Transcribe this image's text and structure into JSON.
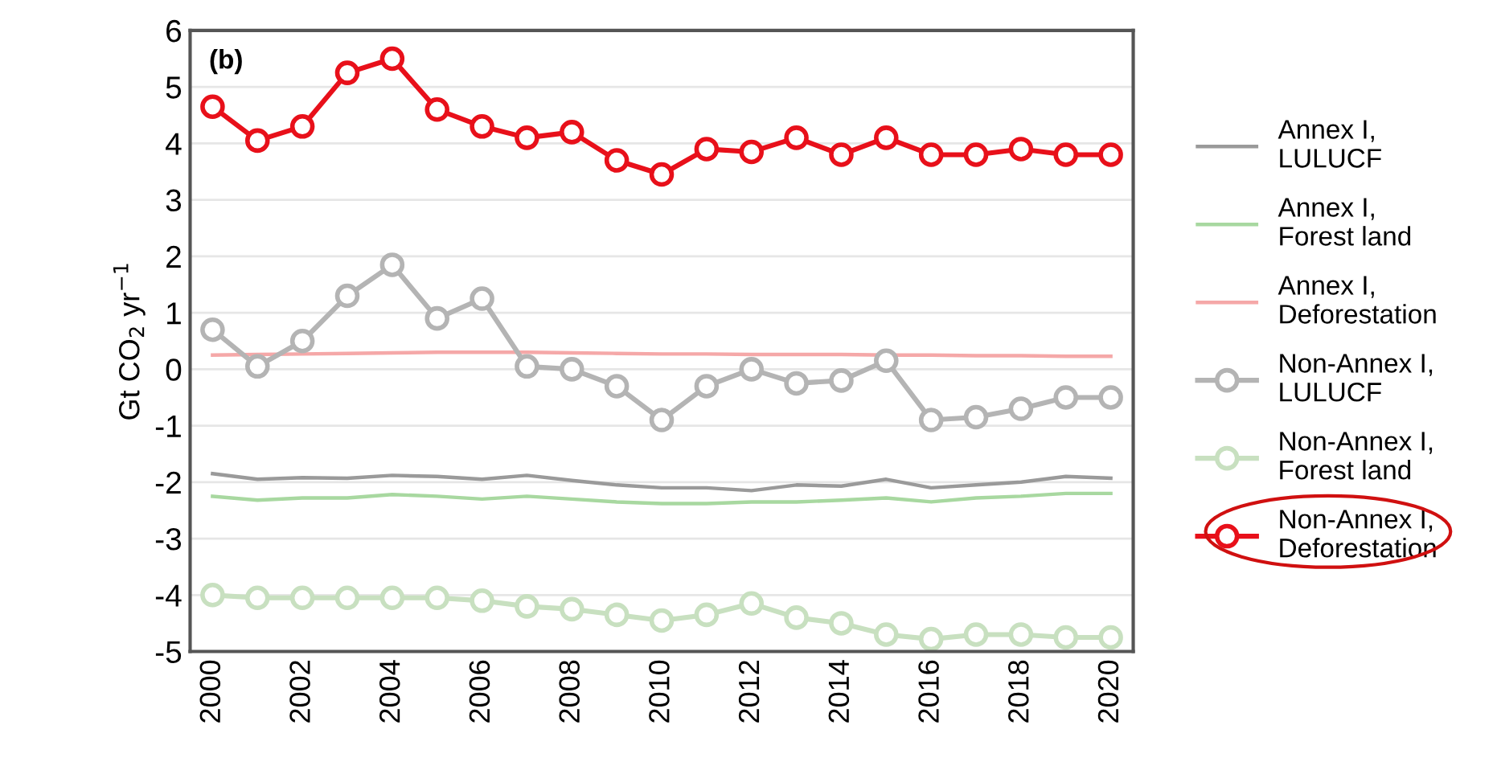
{
  "chart_data": {
    "type": "line",
    "ylabel": "Gt CO$_{2}$ yr$^{−1}$",
    "annotations": [
      "(b)"
    ],
    "x": [
      2000,
      2001,
      2002,
      2003,
      2004,
      2005,
      2006,
      2007,
      2008,
      2009,
      2010,
      2011,
      2012,
      2013,
      2014,
      2015,
      2016,
      2017,
      2018,
      2019,
      2020
    ],
    "xlim": [
      1999.5,
      2020.5
    ],
    "xticks": [
      2000,
      2002,
      2004,
      2006,
      2008,
      2010,
      2012,
      2014,
      2016,
      2018,
      2020
    ],
    "ylim": [
      -5,
      6
    ],
    "yticks": [
      -5,
      -4,
      -3,
      -2,
      -1,
      0,
      1,
      2,
      3,
      4,
      5,
      6
    ],
    "grid": "y",
    "legend": "right",
    "line_style": "solid",
    "series": [
      {
        "name": "Annex I,\nLULUCF",
        "color": "#9a9a9a",
        "marker": "none",
        "values": [
          -1.85,
          -1.95,
          -1.92,
          -1.93,
          -1.88,
          -1.9,
          -1.95,
          -1.88,
          -1.97,
          -2.05,
          -2.1,
          -2.1,
          -2.15,
          -2.05,
          -2.07,
          -1.95,
          -2.1,
          -2.05,
          -2.0,
          -1.9,
          -1.93
        ]
      },
      {
        "name": "Annex I,\nForest land",
        "color": "#a8d8a0",
        "marker": "none",
        "values": [
          -2.25,
          -2.32,
          -2.28,
          -2.28,
          -2.22,
          -2.25,
          -2.3,
          -2.25,
          -2.3,
          -2.35,
          -2.38,
          -2.38,
          -2.35,
          -2.35,
          -2.32,
          -2.28,
          -2.35,
          -2.28,
          -2.25,
          -2.2,
          -2.2
        ]
      },
      {
        "name": "Annex I,\nDeforestation",
        "color": "#f5a8a8",
        "marker": "none",
        "values": [
          0.25,
          0.26,
          0.27,
          0.28,
          0.29,
          0.3,
          0.3,
          0.3,
          0.29,
          0.28,
          0.27,
          0.27,
          0.26,
          0.26,
          0.26,
          0.25,
          0.25,
          0.24,
          0.24,
          0.23,
          0.23
        ]
      },
      {
        "name": "Non-Annex I,\nLULUCF",
        "color": "#b4b4b4",
        "marker": "circle",
        "values": [
          0.7,
          0.05,
          0.5,
          1.3,
          1.85,
          0.9,
          1.25,
          0.05,
          0.0,
          -0.3,
          -0.9,
          -0.3,
          0.0,
          -0.25,
          -0.2,
          0.15,
          -0.9,
          -0.85,
          -0.7,
          -0.5,
          -0.5
        ]
      },
      {
        "name": "Non-Annex I,\nForest land",
        "color": "#c8e0c0",
        "marker": "circle",
        "values": [
          -4.0,
          -4.05,
          -4.05,
          -4.05,
          -4.05,
          -4.05,
          -4.1,
          -4.2,
          -4.25,
          -4.35,
          -4.45,
          -4.35,
          -4.15,
          -4.4,
          -4.5,
          -4.7,
          -4.78,
          -4.7,
          -4.7,
          -4.75,
          -4.75
        ]
      },
      {
        "name": "Non-Annex I,\nDeforestation",
        "color": "#e8101a",
        "marker": "circle",
        "values": [
          4.65,
          4.05,
          4.3,
          5.25,
          5.5,
          4.6,
          4.3,
          4.1,
          4.2,
          3.7,
          3.45,
          3.9,
          3.85,
          4.1,
          3.8,
          4.1,
          3.8,
          3.8,
          3.9,
          3.8,
          3.8
        ]
      }
    ]
  }
}
